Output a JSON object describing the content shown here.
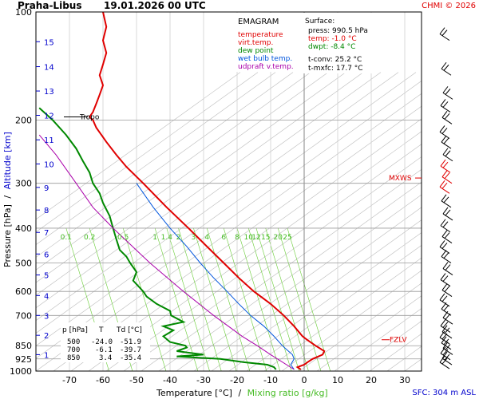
{
  "header": {
    "station": "Praha-Libus",
    "datetime": "19.01.2026 00 UTC",
    "credit": "CHMI © 2026"
  },
  "legend": {
    "title": "EMAGRAM",
    "items": [
      {
        "label": "temperature",
        "color": "#e00000"
      },
      {
        "label": "virt.temp.",
        "color": "#e00000"
      },
      {
        "label": "dew point",
        "color": "#008800"
      },
      {
        "label": "wet bulb temp.",
        "color": "#0055dd"
      },
      {
        "label": "udpraft v.temp.",
        "color": "#aa00aa"
      }
    ]
  },
  "surface": {
    "title": "Surface:",
    "press": "press: 990.5 hPa",
    "temp": "temp: -1.0 °C",
    "dwpt": "dwpt: -8.4 °C",
    "tconv": "t-conv: 25.2 °C",
    "tmxfc": "t-mxfc: 17.7 °C"
  },
  "table": {
    "headers": [
      "p [hPa]",
      "T",
      "Td [°C]"
    ],
    "rows": [
      [
        "500",
        "-24.0",
        "-51.9"
      ],
      [
        "700",
        "-6.1",
        "-39.7"
      ],
      [
        "850",
        "3.4",
        "-35.4"
      ]
    ]
  },
  "annotations": {
    "tropo": "Tropo",
    "mxws": "MXWS",
    "fzlv": "FZLV",
    "sfc": "SFC: 304 m ASL"
  },
  "axes": {
    "ylabel_pressure": "Pressure [hPa]",
    "ylabel_sep": "/",
    "ylabel_altitude": "Altitude [km]",
    "xlabel_temp": "Temperature [°C]",
    "xlabel_sep": "/",
    "xlabel_mixing": "Mixing ratio [g/kg]"
  },
  "colors": {
    "temperature": "#e00000",
    "dewpoint": "#008800",
    "wetbulb": "#0055dd",
    "parcel": "#aa00aa",
    "altitude": "#0000cc",
    "mixing": "#66cc33",
    "grid": "#888888"
  },
  "chart_data": {
    "type": "line",
    "xlim": [
      -80,
      35
    ],
    "ylim": [
      1000,
      100
    ],
    "ylog": true,
    "pressure_ticks": [
      100,
      200,
      300,
      400,
      500,
      600,
      700,
      850,
      925,
      1000
    ],
    "temperature_ticks": [
      -70,
      -60,
      -50,
      -40,
      -30,
      -20,
      -10,
      0,
      10,
      20,
      30
    ],
    "altitude_ticks_km": [
      1,
      2,
      3,
      4,
      5,
      6,
      7,
      8,
      9,
      10,
      11,
      12,
      13,
      14,
      15
    ],
    "altitude_tick_pressures": [
      900,
      795,
      700,
      616,
      540,
      472,
      411,
      356,
      308,
      265,
      227,
      194,
      166,
      142,
      121
    ],
    "mixing_ratio_ticks": [
      "0.1",
      "0.2",
      "0.5",
      "1",
      "1.4",
      "2",
      "3",
      "4",
      "6",
      "8",
      "10",
      "12",
      "15",
      "20",
      "25"
    ],
    "mixing_ratio_label_temps": [
      -71,
      -64,
      -54,
      -44.5,
      -41,
      -37.5,
      -33,
      -29,
      -24,
      -20,
      -16.6,
      -14.3,
      -11.5,
      -7.8,
      -5
    ],
    "tropopause_hpa": 196,
    "mxws_hpa": 290,
    "fzlv_hpa": 818,
    "series": [
      {
        "name": "temperature",
        "points": [
          [
            990,
            -1.0
          ],
          [
            975,
            -2.0
          ],
          [
            960,
            0.0
          ],
          [
            945,
            1.0
          ],
          [
            925,
            2.5
          ],
          [
            900,
            5.5
          ],
          [
            880,
            6.0
          ],
          [
            850,
            3.4
          ],
          [
            820,
            1.0
          ],
          [
            800,
            -0.5
          ],
          [
            750,
            -3.0
          ],
          [
            700,
            -6.1
          ],
          [
            650,
            -10
          ],
          [
            600,
            -15
          ],
          [
            550,
            -19.5
          ],
          [
            500,
            -24.0
          ],
          [
            450,
            -29
          ],
          [
            400,
            -34.5
          ],
          [
            350,
            -41
          ],
          [
            300,
            -48
          ],
          [
            270,
            -53
          ],
          [
            250,
            -56
          ],
          [
            230,
            -59
          ],
          [
            210,
            -62
          ],
          [
            200,
            -63
          ],
          [
            196,
            -64
          ],
          [
            190,
            -63
          ],
          [
            180,
            -62
          ],
          [
            170,
            -61
          ],
          [
            160,
            -60
          ],
          [
            150,
            -61
          ],
          [
            140,
            -60
          ],
          [
            130,
            -59
          ],
          [
            120,
            -60
          ],
          [
            110,
            -59
          ],
          [
            100,
            -60
          ]
        ]
      },
      {
        "name": "dew point",
        "points": [
          [
            990,
            -8.4
          ],
          [
            975,
            -9
          ],
          [
            960,
            -11
          ],
          [
            945,
            -18
          ],
          [
            925,
            -25
          ],
          [
            910,
            -38
          ],
          [
            900,
            -30
          ],
          [
            880,
            -38
          ],
          [
            860,
            -35
          ],
          [
            850,
            -35.4
          ],
          [
            830,
            -40
          ],
          [
            800,
            -42
          ],
          [
            770,
            -39
          ],
          [
            750,
            -42
          ],
          [
            730,
            -36
          ],
          [
            700,
            -39.7
          ],
          [
            680,
            -40
          ],
          [
            650,
            -44
          ],
          [
            620,
            -47
          ],
          [
            600,
            -48
          ],
          [
            560,
            -51
          ],
          [
            530,
            -50
          ],
          [
            500,
            -51.9
          ],
          [
            480,
            -53
          ],
          [
            460,
            -55
          ],
          [
            430,
            -56
          ],
          [
            400,
            -57
          ],
          [
            370,
            -58
          ],
          [
            340,
            -60
          ],
          [
            320,
            -61
          ],
          [
            300,
            -63
          ],
          [
            280,
            -64
          ],
          [
            260,
            -66
          ],
          [
            240,
            -68
          ],
          [
            220,
            -71
          ],
          [
            200,
            -75
          ],
          [
            185,
            -79
          ]
        ]
      },
      {
        "name": "wet bulb temp.",
        "points": [
          [
            990,
            -3
          ],
          [
            960,
            -4
          ],
          [
            925,
            -3
          ],
          [
            900,
            -3.5
          ],
          [
            875,
            -5
          ],
          [
            850,
            -6.5
          ],
          [
            800,
            -9
          ],
          [
            750,
            -12
          ],
          [
            700,
            -16
          ],
          [
            650,
            -19.5
          ],
          [
            600,
            -23
          ],
          [
            550,
            -27
          ],
          [
            500,
            -31
          ],
          [
            450,
            -35
          ],
          [
            400,
            -40
          ],
          [
            350,
            -45
          ],
          [
            300,
            -50
          ]
        ]
      },
      {
        "name": "udpraft v.temp.",
        "points": [
          [
            990,
            -3
          ],
          [
            900,
            -10
          ],
          [
            850,
            -14
          ],
          [
            800,
            -18.5
          ],
          [
            700,
            -27
          ],
          [
            600,
            -36
          ],
          [
            500,
            -46
          ],
          [
            400,
            -57
          ],
          [
            350,
            -63
          ],
          [
            300,
            -68
          ],
          [
            250,
            -74
          ],
          [
            220,
            -79
          ]
        ]
      }
    ]
  }
}
